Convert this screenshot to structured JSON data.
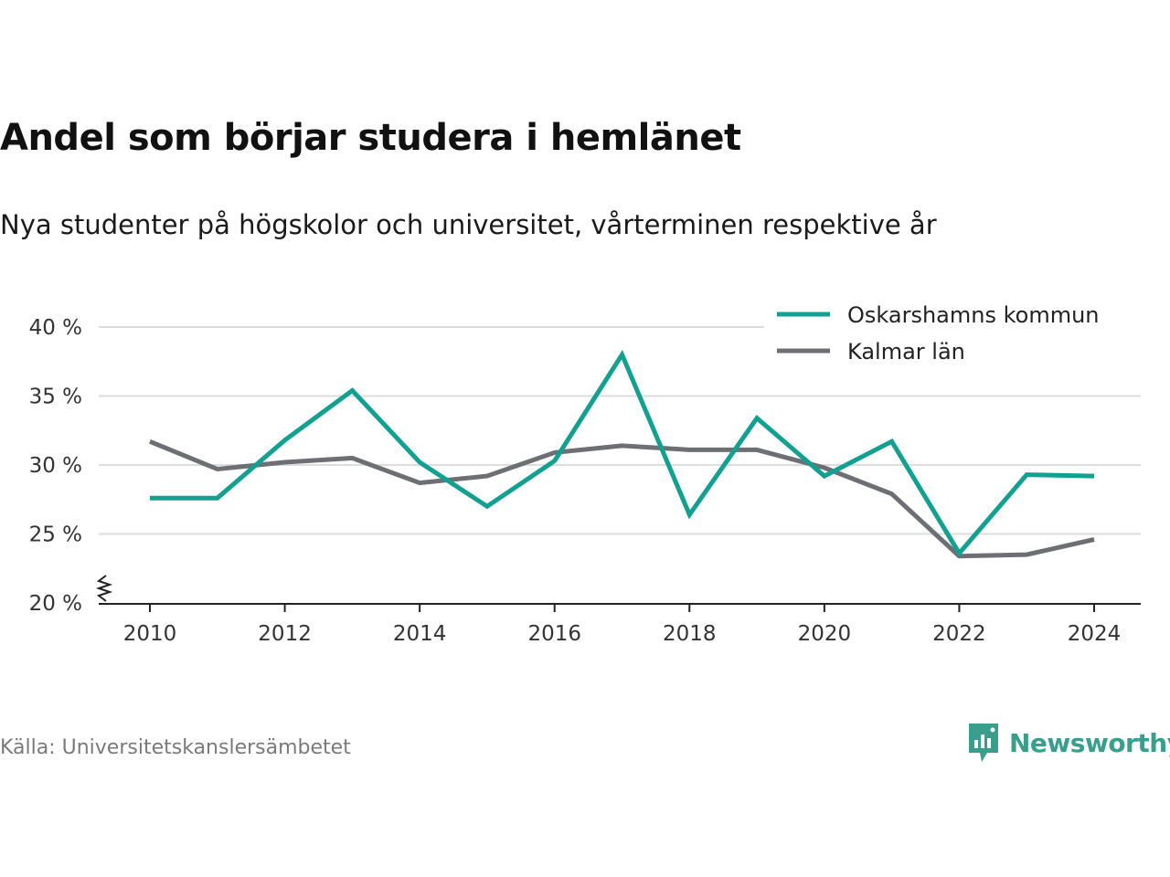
{
  "title": "Andel som börjar studera i hemlänet",
  "subtitle": "Nya studenter på högskolor och universitet, vårterminen respektive år",
  "source": "Källa: Universitetskanslersämbetet",
  "brand": {
    "name": "Newsworthy",
    "icon": "newsworthy-logo-icon",
    "color": "#3a9e8c"
  },
  "colors": {
    "oskarshamn": "#12a090",
    "kalmar": "#6e6e75",
    "grid": "#dddddd",
    "axis": "#222222"
  },
  "chart_data": {
    "type": "line",
    "title": "Andel som börjar studera i hemlänet",
    "subtitle": "Nya studenter på högskolor och universitet, vårterminen respektive år",
    "xlabel": "",
    "ylabel": "",
    "x": [
      2010,
      2011,
      2012,
      2013,
      2014,
      2015,
      2016,
      2017,
      2018,
      2019,
      2020,
      2021,
      2022,
      2023,
      2024
    ],
    "x_ticks": [
      "2010",
      "2012",
      "2014",
      "2016",
      "2018",
      "2020",
      "2022",
      "2024"
    ],
    "y_ticks": [
      "20 %",
      "25 %",
      "30 %",
      "35 %",
      "40 %"
    ],
    "ylim": [
      20,
      40
    ],
    "y_axis_break": true,
    "grid": "horizontal",
    "legend_position": "top-right",
    "series": [
      {
        "name": "Oskarshamns kommun",
        "color": "#12a090",
        "values": [
          27.6,
          27.6,
          31.8,
          35.4,
          30.2,
          27.0,
          30.3,
          38.0,
          26.4,
          33.4,
          29.2,
          31.7,
          23.6,
          29.3,
          29.2
        ]
      },
      {
        "name": "Kalmar län",
        "color": "#6e6e75",
        "values": [
          31.7,
          29.7,
          30.2,
          30.5,
          28.7,
          29.2,
          30.9,
          31.4,
          31.1,
          31.1,
          29.8,
          27.9,
          23.4,
          23.5,
          24.6
        ]
      }
    ]
  }
}
